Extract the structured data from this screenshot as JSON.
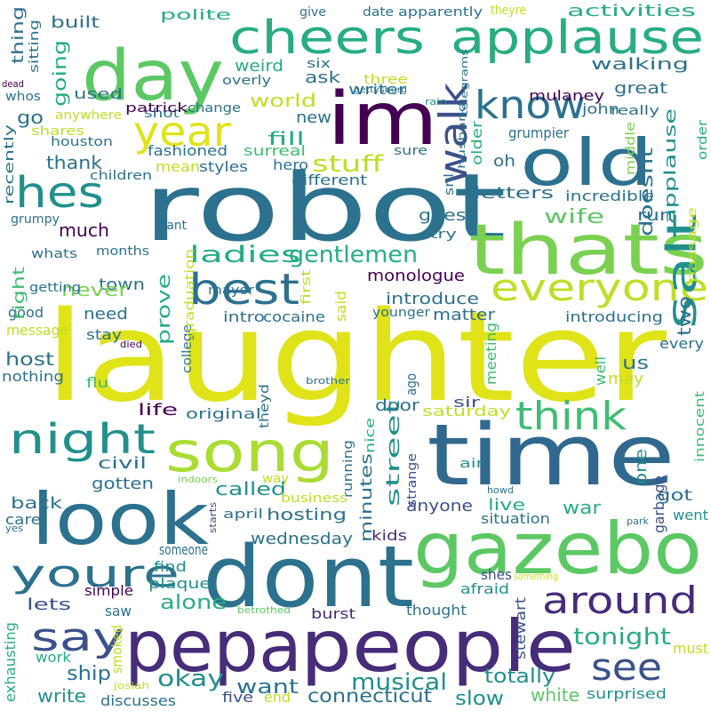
{
  "background": "#ffffff",
  "palette": [
    "#440154",
    "#472c7a",
    "#3b518b",
    "#2c718e",
    "#21908d",
    "#27ad81",
    "#5cc863",
    "#aadc32",
    "#fde725"
  ],
  "words": [
    {
      "text": "laughter",
      "color": "#dfe318"
    },
    {
      "text": "robot",
      "color": "#2c718e"
    },
    {
      "text": "time",
      "color": "#31688e"
    },
    {
      "text": "dont",
      "color": "#2c718e"
    },
    {
      "text": "pepa",
      "color": "#472c7a"
    },
    {
      "text": "people",
      "color": "#472c7a"
    },
    {
      "text": "gazebo",
      "color": "#5cc863"
    },
    {
      "text": "look",
      "color": "#2c718e"
    },
    {
      "text": "thats",
      "color": "#7ad151"
    },
    {
      "text": "day",
      "color": "#5cc863"
    },
    {
      "text": "im",
      "color": "#440154"
    },
    {
      "text": "old",
      "color": "#2c718e"
    },
    {
      "text": "song",
      "color": "#aadc32"
    },
    {
      "text": "cheers",
      "color": "#27ad81"
    },
    {
      "text": "applause",
      "color": "#27ad81"
    },
    {
      "text": "walk",
      "color": "#3b518b"
    },
    {
      "text": "know",
      "color": "#2c718e"
    },
    {
      "text": "everyone",
      "color": "#bddf26"
    },
    {
      "text": "hes",
      "color": "#21908d"
    },
    {
      "text": "year",
      "color": "#dfe318"
    },
    {
      "text": "best",
      "color": "#2c718e"
    },
    {
      "text": "night",
      "color": "#21908d"
    },
    {
      "text": "youre",
      "color": "#2c718e"
    },
    {
      "text": "say",
      "color": "#3b518b"
    },
    {
      "text": "salt",
      "color": "#21908d"
    },
    {
      "text": "think",
      "color": "#3fbc73"
    },
    {
      "text": "around",
      "color": "#472c7a"
    },
    {
      "text": "see",
      "color": "#3b518b"
    },
    {
      "text": "cheers",
      "color": "#27ad81"
    },
    {
      "text": "ladies",
      "color": "#27ad81"
    },
    {
      "text": "gentlemen",
      "color": "#27ad81"
    },
    {
      "text": "stuff",
      "color": "#bddf26"
    },
    {
      "text": "tonight",
      "color": "#27ad81"
    },
    {
      "text": "okay",
      "color": "#21908d"
    },
    {
      "text": "musical",
      "color": "#21908d"
    },
    {
      "text": "want",
      "color": "#2c718e"
    },
    {
      "text": "connecticut",
      "color": "#2c718e"
    },
    {
      "text": "slow",
      "color": "#21908d"
    },
    {
      "text": "totally",
      "color": "#21908d"
    },
    {
      "text": "white",
      "color": "#5cc863"
    },
    {
      "text": "surprised",
      "color": "#21908d"
    },
    {
      "text": "ship",
      "color": "#2c718e"
    },
    {
      "text": "alone",
      "color": "#27ad81"
    },
    {
      "text": "lets",
      "color": "#3b518b"
    },
    {
      "text": "write",
      "color": "#21908d"
    },
    {
      "text": "five",
      "color": "#3b518b"
    },
    {
      "text": "end",
      "color": "#bddf26"
    },
    {
      "text": "discusses",
      "color": "#2c718e"
    },
    {
      "text": "work",
      "color": "#27ad81"
    },
    {
      "text": "saw",
      "color": "#2c718e"
    },
    {
      "text": "smoked",
      "color": "#bddf26"
    },
    {
      "text": "josiah",
      "color": "#bddf26"
    },
    {
      "text": "exhausting",
      "color": "#27ad81"
    },
    {
      "text": "must",
      "color": "#bddf26"
    },
    {
      "text": "stewart",
      "color": "#3b518b"
    },
    {
      "text": "thought",
      "color": "#2c718e"
    },
    {
      "text": "burst",
      "color": "#472c7a"
    },
    {
      "text": "betrothed",
      "color": "#5cc863"
    },
    {
      "text": "afraid",
      "color": "#21908d"
    },
    {
      "text": "shes",
      "color": "#3b518b"
    },
    {
      "text": "something",
      "color": "#bddf26"
    },
    {
      "text": "simple",
      "color": "#440154"
    },
    {
      "text": "plaque",
      "color": "#21908d"
    },
    {
      "text": "find",
      "color": "#21908d"
    },
    {
      "text": "someone",
      "color": "#2c718e"
    },
    {
      "text": "wednesday",
      "color": "#2c718e"
    },
    {
      "text": "hosting",
      "color": "#2c718e"
    },
    {
      "text": "kids",
      "color": "#472c7a"
    },
    {
      "text": "minutes",
      "color": "#2c718e"
    },
    {
      "text": "anyone",
      "color": "#3b518b"
    },
    {
      "text": "live",
      "color": "#27ad81"
    },
    {
      "text": "war",
      "color": "#27ad81"
    },
    {
      "text": "situation",
      "color": "#2c718e"
    },
    {
      "text": "went",
      "color": "#21908d"
    },
    {
      "text": "park",
      "color": "#2c718e"
    },
    {
      "text": "garbage",
      "color": "#3b518b"
    },
    {
      "text": "got",
      "color": "#2c718e"
    },
    {
      "text": "one",
      "color": "#21908d"
    },
    {
      "text": "innocent",
      "color": "#3fbc73"
    },
    {
      "text": "howd",
      "color": "#2c718e"
    },
    {
      "text": "air",
      "color": "#21908d"
    },
    {
      "text": "strange",
      "color": "#3b518b"
    },
    {
      "text": "sir",
      "color": "#3b518b"
    },
    {
      "text": "nice",
      "color": "#27ad81"
    },
    {
      "text": "running",
      "color": "#2c718e"
    },
    {
      "text": "street",
      "color": "#21908d"
    },
    {
      "text": "door",
      "color": "#2c718e"
    },
    {
      "text": "saturday",
      "color": "#bddf26"
    },
    {
      "text": "civil",
      "color": "#2c718e"
    },
    {
      "text": "called",
      "color": "#21908d"
    },
    {
      "text": "gotten",
      "color": "#2c718e"
    },
    {
      "text": "back",
      "color": "#2c718e"
    },
    {
      "text": "indoors",
      "color": "#7ad151"
    },
    {
      "text": "way",
      "color": "#bddf26"
    },
    {
      "text": "business",
      "color": "#bddf26"
    },
    {
      "text": "april",
      "color": "#2c718e"
    },
    {
      "text": "starts",
      "color": "#3b518b"
    },
    {
      "text": "care",
      "color": "#2c718e"
    },
    {
      "text": "yes",
      "color": "#2c718e"
    },
    {
      "text": "life",
      "color": "#440154"
    },
    {
      "text": "original",
      "color": "#2c718e"
    },
    {
      "text": "theyd",
      "color": "#2c718e"
    },
    {
      "text": "brother",
      "color": "#2c718e"
    },
    {
      "text": "ago",
      "color": "#2c718e"
    },
    {
      "text": "meeting",
      "color": "#3fbc73"
    },
    {
      "text": "well",
      "color": "#3fbc73"
    },
    {
      "text": "may",
      "color": "#bddf26"
    },
    {
      "text": "us",
      "color": "#2c718e"
    },
    {
      "text": "every",
      "color": "#2c718e"
    },
    {
      "text": "host",
      "color": "#2c718e"
    },
    {
      "text": "nothing",
      "color": "#2c718e"
    },
    {
      "text": "flu",
      "color": "#3fbc73"
    },
    {
      "text": "college",
      "color": "#2c718e"
    },
    {
      "text": "died",
      "color": "#440154"
    },
    {
      "text": "stay",
      "color": "#2c718e"
    },
    {
      "text": "message",
      "color": "#bddf26"
    },
    {
      "text": "good",
      "color": "#2c718e"
    },
    {
      "text": "need",
      "color": "#2c718e"
    },
    {
      "text": "intro",
      "color": "#2c718e"
    },
    {
      "text": "cocaine",
      "color": "#2c718e"
    },
    {
      "text": "younger",
      "color": "#2c718e"
    },
    {
      "text": "matter",
      "color": "#2c718e"
    },
    {
      "text": "introducing",
      "color": "#2c718e"
    },
    {
      "text": "two",
      "color": "#2c718e"
    },
    {
      "text": "said",
      "color": "#bddf26"
    },
    {
      "text": "first",
      "color": "#bddf26"
    },
    {
      "text": "graduation",
      "color": "#bddf26"
    },
    {
      "text": "mayor",
      "color": "#2c718e"
    },
    {
      "text": "prove",
      "color": "#27ad81"
    },
    {
      "text": "monologue",
      "color": "#440154"
    },
    {
      "text": "introduce",
      "color": "#2c718e"
    },
    {
      "text": "town",
      "color": "#2c718e"
    },
    {
      "text": "never",
      "color": "#7ad151"
    },
    {
      "text": "getting",
      "color": "#2c718e"
    },
    {
      "text": "right",
      "color": "#3fbc73"
    },
    {
      "text": "whats",
      "color": "#2c718e"
    },
    {
      "text": "months",
      "color": "#2c718e"
    },
    {
      "text": "cant",
      "color": "#2c718e"
    },
    {
      "text": "much",
      "color": "#440154"
    },
    {
      "text": "grumpy",
      "color": "#2c718e"
    },
    {
      "text": "guest",
      "color": "#2c718e"
    },
    {
      "text": "try",
      "color": "#2c718e"
    },
    {
      "text": "wife",
      "color": "#5cc863"
    },
    {
      "text": "run",
      "color": "#2c718e"
    },
    {
      "text": "passage",
      "color": "#bddf26"
    },
    {
      "text": "applause",
      "color": "#21908d"
    },
    {
      "text": "doesnt",
      "color": "#2c718e"
    },
    {
      "text": "incredible",
      "color": "#2c718e"
    },
    {
      "text": "letters",
      "color": "#2c718e"
    },
    {
      "text": "snl",
      "color": "#2c718e"
    },
    {
      "text": "husband",
      "color": "#2c718e"
    },
    {
      "text": "older",
      "color": "#27ad81"
    },
    {
      "text": "oh",
      "color": "#2c718e"
    },
    {
      "text": "middle",
      "color": "#7ad151"
    },
    {
      "text": "grumpier",
      "color": "#2c718e"
    },
    {
      "text": "order",
      "color": "#27ad81"
    },
    {
      "text": "sure",
      "color": "#2c718e"
    },
    {
      "text": "different",
      "color": "#2c718e"
    },
    {
      "text": "hero",
      "color": "#2c718e"
    },
    {
      "text": "surreal",
      "color": "#3fbc73"
    },
    {
      "text": "fill",
      "color": "#27ad81"
    },
    {
      "text": "styles",
      "color": "#2c718e"
    },
    {
      "text": "mean",
      "color": "#bddf26"
    },
    {
      "text": "fashioned",
      "color": "#2c718e"
    },
    {
      "text": "children",
      "color": "#2c718e"
    },
    {
      "text": "thank",
      "color": "#2c718e"
    },
    {
      "text": "houston",
      "color": "#2c718e"
    },
    {
      "text": "recently",
      "color": "#2c718e"
    },
    {
      "text": "shares",
      "color": "#bddf26"
    },
    {
      "text": "anywhere",
      "color": "#bddf26"
    },
    {
      "text": "go",
      "color": "#2c718e"
    },
    {
      "text": "whos",
      "color": "#2c718e"
    },
    {
      "text": "dead",
      "color": "#440154"
    },
    {
      "text": "used",
      "color": "#2c718e"
    },
    {
      "text": "going",
      "color": "#27ad81"
    },
    {
      "text": "thing",
      "color": "#2c718e"
    },
    {
      "text": "sitting",
      "color": "#2c718e"
    },
    {
      "text": "built",
      "color": "#2c718e"
    },
    {
      "text": "polite",
      "color": "#27ad81"
    },
    {
      "text": "weird",
      "color": "#27ad81"
    },
    {
      "text": "shot",
      "color": "#2c718e"
    },
    {
      "text": "patrick",
      "color": "#440154"
    },
    {
      "text": "change",
      "color": "#2c718e"
    },
    {
      "text": "overly",
      "color": "#2c718e"
    },
    {
      "text": "world",
      "color": "#bddf26"
    },
    {
      "text": "new",
      "color": "#2c718e"
    },
    {
      "text": "ask",
      "color": "#2c718e"
    },
    {
      "text": "six",
      "color": "#2c718e"
    },
    {
      "text": "three",
      "color": "#bddf26"
    },
    {
      "text": "gettysburg",
      "color": "#2c718e"
    },
    {
      "text": "writer",
      "color": "#2c718e"
    },
    {
      "text": "rain",
      "color": "#21908d"
    },
    {
      "text": "telegrams",
      "color": "#2c718e"
    },
    {
      "text": "give",
      "color": "#2c718e"
    },
    {
      "text": "date",
      "color": "#2c718e"
    },
    {
      "text": "apparently",
      "color": "#2c718e"
    },
    {
      "text": "theyre",
      "color": "#bddf26"
    },
    {
      "text": "activities",
      "color": "#27ad81"
    },
    {
      "text": "walking",
      "color": "#2c718e"
    },
    {
      "text": "mulaney",
      "color": "#440154"
    },
    {
      "text": "great",
      "color": "#2c718e"
    },
    {
      "text": "john",
      "color": "#2c718e"
    },
    {
      "text": "really",
      "color": "#2c718e"
    }
  ]
}
